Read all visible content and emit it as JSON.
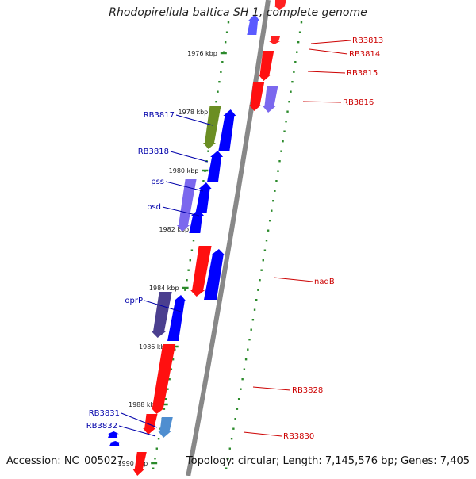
{
  "title": "Rhodopirellula baltica SH 1, complete genome",
  "footer": {
    "accession": "Accession: NC_005027",
    "topology": "Topology: circular; Length: 7,145,576 bp; Genes: 7,405"
  },
  "colors": {
    "forward": "#ff0000",
    "reverse": "#0000ff",
    "label_forward": "#cc0000",
    "label_reverse": "#0000aa",
    "tick": "#2b8a2b",
    "backbone": "#888888"
  },
  "kbp_ticks": [
    {
      "label": "1976 kbp"
    },
    {
      "label": "1978 kbp"
    },
    {
      "label": "1980 kbp"
    },
    {
      "label": "1982 kbp"
    },
    {
      "label": "1984 kbp"
    },
    {
      "label": "1986 kbp"
    },
    {
      "label": "1988 kbp"
    },
    {
      "label": "1990 kbp"
    }
  ],
  "gene_labels": [
    {
      "name": "RB3813",
      "strand": "forward"
    },
    {
      "name": "RB3814",
      "strand": "forward"
    },
    {
      "name": "RB3815",
      "strand": "forward"
    },
    {
      "name": "RB3816",
      "strand": "forward"
    },
    {
      "name": "RB3817",
      "strand": "reverse"
    },
    {
      "name": "RB3818",
      "strand": "reverse"
    },
    {
      "name": "pss",
      "strand": "reverse"
    },
    {
      "name": "psd",
      "strand": "reverse"
    },
    {
      "name": "nadB",
      "strand": "forward"
    },
    {
      "name": "oprP",
      "strand": "reverse"
    },
    {
      "name": "RB3828",
      "strand": "forward"
    },
    {
      "name": "RB3830",
      "strand": "forward"
    },
    {
      "name": "RB3831",
      "strand": "reverse"
    },
    {
      "name": "RB3832",
      "strand": "reverse"
    }
  ]
}
